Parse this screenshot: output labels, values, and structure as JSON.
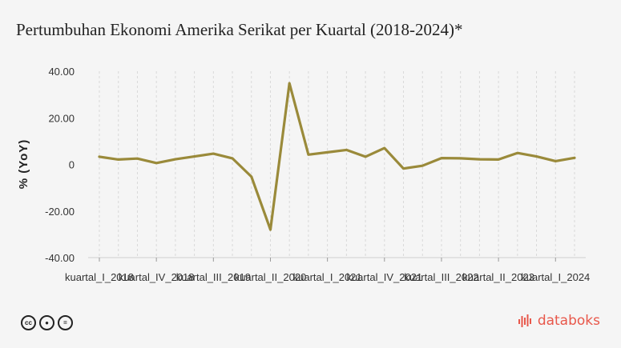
{
  "title": "Pertumbuhan Ekonomi Amerika Serikat per Kuartal (2018-2024)*",
  "footer": {
    "license_icons": [
      "cc-icon",
      "by-icon",
      "nd-icon"
    ],
    "brand": "databoks"
  },
  "chart_data": {
    "type": "line",
    "title": "Pertumbuhan Ekonomi Amerika Serikat per Kuartal (2018-2024)*",
    "xlabel": "",
    "ylabel": "% (YoY)",
    "ylim": [
      -40,
      40
    ],
    "yticks": [
      "40.00",
      "20.00",
      "0",
      "-20.00",
      "-40.00"
    ],
    "yticks_values": [
      40,
      20,
      0,
      -20,
      -40
    ],
    "grid": "vertical-dashed",
    "line_color": "#9a8a3a",
    "x_tick_labels": [
      {
        "index": 0,
        "label": "kuartal_I_2018"
      },
      {
        "index": 3,
        "label": "kuartal_IV_2018"
      },
      {
        "index": 6,
        "label": "kuartal_III_2019"
      },
      {
        "index": 9,
        "label": "kuartal_II_2020"
      },
      {
        "index": 12,
        "label": "kuartal_I_2021"
      },
      {
        "index": 15,
        "label": "kuartal_IV_2021"
      },
      {
        "index": 18,
        "label": "kuartal_III_2022"
      },
      {
        "index": 21,
        "label": "kuartal_II_2023"
      },
      {
        "index": 24,
        "label": "kuartal_I_2024"
      }
    ],
    "series": [
      {
        "values": [
          3.3,
          2.1,
          2.5,
          0.6,
          2.2,
          3.4,
          4.6,
          2.6,
          -5.3,
          -28.0,
          34.8,
          4.2,
          5.2,
          6.2,
          3.3,
          7.0,
          -1.8,
          -0.6,
          2.7,
          2.6,
          2.2,
          2.1,
          4.9,
          3.4,
          1.4,
          2.8
        ]
      }
    ]
  }
}
